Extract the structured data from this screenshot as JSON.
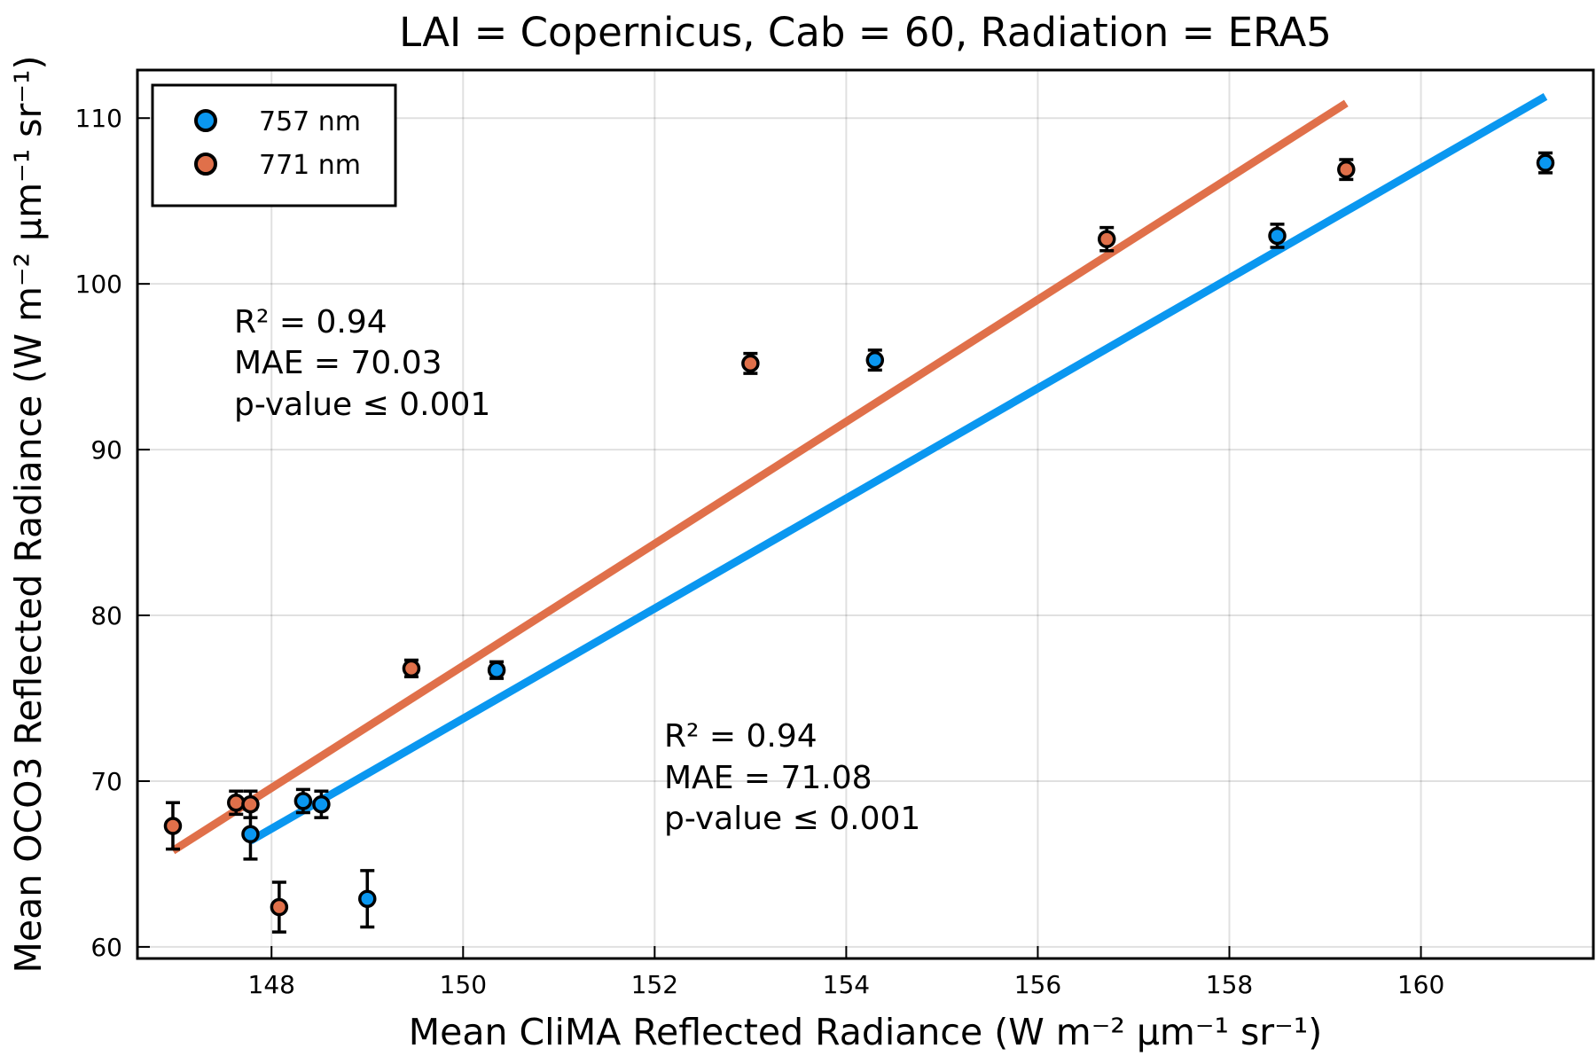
{
  "chart_data": {
    "type": "scatter",
    "title": "LAI = Copernicus, Cab = 60, Radiation = ERA5",
    "xlabel": "Mean CliMA Reflected Radiance (W m⁻² μm⁻¹ sr⁻¹)",
    "ylabel": "Mean OCO3 Reflected Radiance (W m⁻² μm⁻¹ sr⁻¹)",
    "xlim": [
      146.6,
      161.8
    ],
    "ylim": [
      59.3,
      112.9
    ],
    "xticks": [
      148,
      150,
      152,
      154,
      156,
      158,
      160
    ],
    "yticks": [
      60,
      70,
      80,
      90,
      100,
      110
    ],
    "grid": true,
    "legend_position": "top-left",
    "series": [
      {
        "name": "757 nm",
        "color": "#0A97F0",
        "points": [
          {
            "x": 147.78,
            "y": 66.8,
            "err": 1.5
          },
          {
            "x": 148.33,
            "y": 68.8,
            "err": 0.7
          },
          {
            "x": 148.52,
            "y": 68.6,
            "err": 0.8
          },
          {
            "x": 149.0,
            "y": 62.9,
            "err": 1.7
          },
          {
            "x": 150.35,
            "y": 76.7,
            "err": 0.5
          },
          {
            "x": 154.3,
            "y": 95.4,
            "err": 0.6
          },
          {
            "x": 158.5,
            "y": 102.9,
            "err": 0.7
          },
          {
            "x": 161.3,
            "y": 107.3,
            "err": 0.6
          }
        ],
        "fit": {
          "x": [
            147.78,
            161.3
          ],
          "y": [
            66.4,
            111.3
          ]
        },
        "stats": [
          "R² = 0.94",
          "MAE = 71.08",
          "p-value ≤ 0.001"
        ]
      },
      {
        "name": "771 nm",
        "color": "#E0704A",
        "points": [
          {
            "x": 146.97,
            "y": 67.3,
            "err": 1.4
          },
          {
            "x": 147.63,
            "y": 68.7,
            "err": 0.7
          },
          {
            "x": 147.78,
            "y": 68.6,
            "err": 0.8
          },
          {
            "x": 148.08,
            "y": 62.4,
            "err": 1.5
          },
          {
            "x": 149.46,
            "y": 76.8,
            "err": 0.5
          },
          {
            "x": 153.0,
            "y": 95.2,
            "err": 0.6
          },
          {
            "x": 156.72,
            "y": 102.7,
            "err": 0.7
          },
          {
            "x": 159.22,
            "y": 106.9,
            "err": 0.6
          }
        ],
        "fit": {
          "x": [
            146.97,
            159.22
          ],
          "y": [
            65.8,
            110.9
          ]
        },
        "stats": [
          "R² = 0.94",
          "MAE = 70.03",
          "p-value ≤ 0.001"
        ]
      }
    ]
  }
}
